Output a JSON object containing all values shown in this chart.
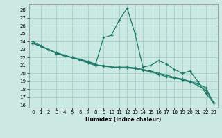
{
  "xlabel": "Humidex (Indice chaleur)",
  "background_color": "#cce8e3",
  "grid_color": "#a8d4cc",
  "line_color": "#1e7a6a",
  "xlim": [
    -0.5,
    23.5
  ],
  "ylim": [
    15.7,
    28.7
  ],
  "yticks": [
    16,
    17,
    18,
    19,
    20,
    21,
    22,
    23,
    24,
    25,
    26,
    27,
    28
  ],
  "xticks": [
    0,
    1,
    2,
    3,
    4,
    5,
    6,
    7,
    8,
    9,
    10,
    11,
    12,
    13,
    14,
    15,
    16,
    17,
    18,
    19,
    20,
    21,
    22,
    23
  ],
  "line1": [
    24.0,
    23.5,
    23.0,
    22.5,
    22.2,
    22.0,
    21.8,
    21.5,
    21.2,
    24.5,
    24.8,
    26.7,
    28.2,
    25.0,
    20.8,
    21.0,
    21.6,
    21.2,
    20.5,
    20.0,
    20.3,
    19.0,
    17.5,
    16.3
  ],
  "line2": [
    23.8,
    23.4,
    23.0,
    22.6,
    22.3,
    22.0,
    21.7,
    21.4,
    21.1,
    20.9,
    20.8,
    20.8,
    20.8,
    20.7,
    20.5,
    20.3,
    20.0,
    19.8,
    19.5,
    19.3,
    19.0,
    18.7,
    18.2,
    16.3
  ],
  "line3": [
    23.8,
    23.4,
    23.0,
    22.6,
    22.3,
    22.0,
    21.7,
    21.3,
    21.0,
    21.0,
    20.8,
    20.7,
    20.7,
    20.6,
    20.4,
    20.2,
    19.9,
    19.6,
    19.4,
    19.2,
    18.9,
    18.5,
    17.9,
    16.3
  ]
}
